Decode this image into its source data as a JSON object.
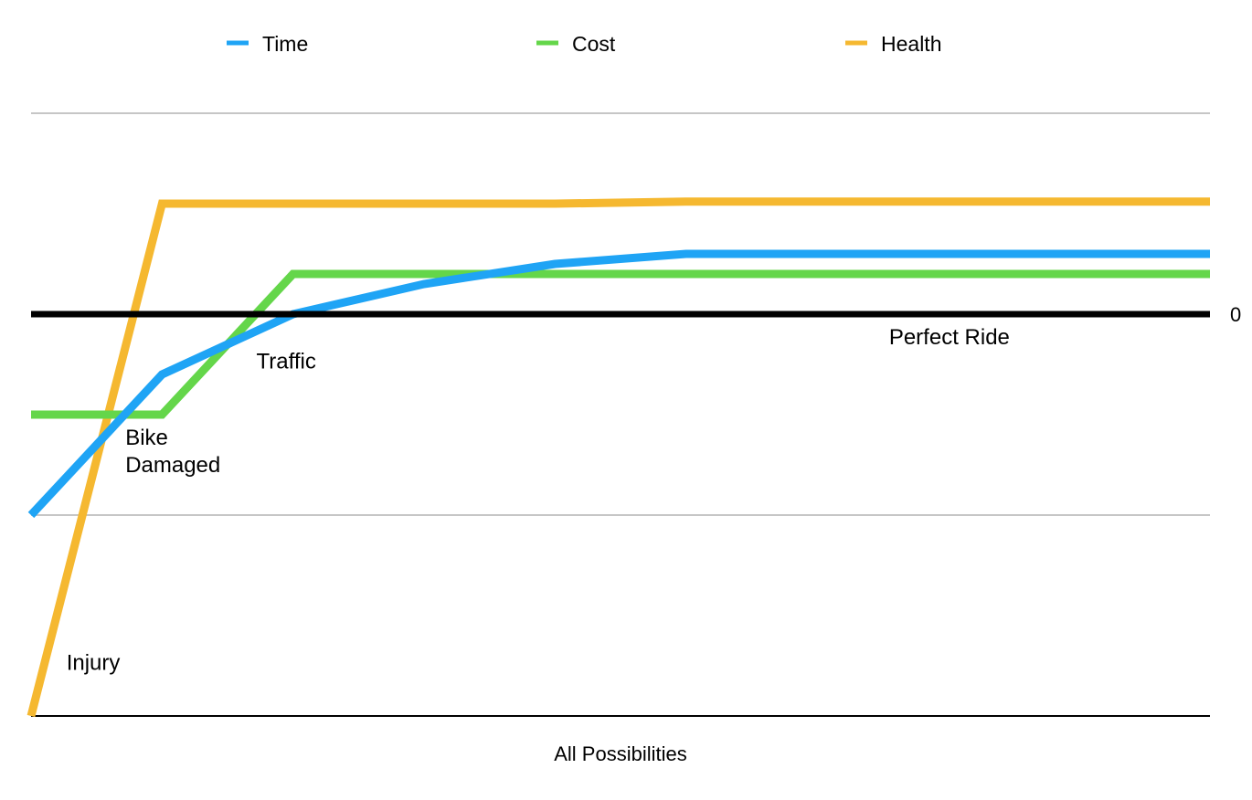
{
  "chart_data": {
    "type": "line",
    "title": "",
    "xlabel": "All Possibilities",
    "ylabel": "",
    "x": [
      0,
      1,
      2,
      3,
      4,
      5,
      6,
      7,
      8,
      9
    ],
    "ylim": [
      -2,
      1
    ],
    "yticks": [
      {
        "value": -2,
        "label": ""
      },
      {
        "value": -1,
        "label": ""
      },
      {
        "value": 0,
        "label": "0"
      },
      {
        "value": 1,
        "label": ""
      }
    ],
    "zero_line": true,
    "grid": true,
    "legend_position": "top",
    "series": [
      {
        "name": "Time",
        "color": "#1fa4f5",
        "values": [
          -1.0,
          -0.3,
          0.0,
          0.15,
          0.25,
          0.3,
          0.3,
          0.3,
          0.3,
          0.3
        ]
      },
      {
        "name": "Cost",
        "color": "#64d64a",
        "values": [
          -0.5,
          -0.5,
          0.2,
          0.2,
          0.2,
          0.2,
          0.2,
          0.2,
          0.2,
          0.2
        ]
      },
      {
        "name": "Health",
        "color": "#f5b830",
        "values": [
          -2.0,
          0.55,
          0.55,
          0.55,
          0.55,
          0.56,
          0.56,
          0.56,
          0.56,
          0.56
        ]
      }
    ],
    "annotations": [
      {
        "text": "Injury",
        "x": 0.27,
        "y": -1.77,
        "lines": [
          "Injury"
        ]
      },
      {
        "text": "Bike Damaged",
        "x": 0.72,
        "y": -0.65,
        "lines": [
          "Bike",
          "Damaged"
        ]
      },
      {
        "text": "Traffic",
        "x": 1.72,
        "y": -0.27,
        "lines": [
          "Traffic"
        ]
      },
      {
        "text": "Perfect Ride",
        "x": 6.55,
        "y": -0.15,
        "lines": [
          "Perfect Ride"
        ]
      }
    ]
  }
}
